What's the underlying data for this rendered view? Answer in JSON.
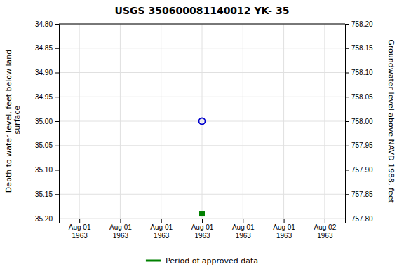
{
  "chart_data": {
    "type": "scatter",
    "title": "USGS 350600081140012 YK-  35",
    "y_label": "Depth to water level, feet below land\n surface",
    "y2_label": "Groundwater level above NAVD 1988, feet",
    "categories": [
      "Aug 01\n1963",
      "Aug 01\n1963",
      "Aug 01\n1963",
      "Aug 01\n1963",
      "Aug 01\n1963",
      "Aug 01\n1963",
      "Aug 02\n1963"
    ],
    "ylim": [
      35.2,
      34.8
    ],
    "yticks": [
      {
        "value": 34.8,
        "label": "34.80"
      },
      34.85,
      {
        "value": 34.9,
        "label": "34.90"
      },
      34.95,
      {
        "value": 35.0,
        "label": "35.00"
      },
      35.05,
      {
        "value": 35.1,
        "label": "35.10"
      },
      35.15,
      {
        "value": 35.2,
        "label": "35.20"
      }
    ],
    "y2lim": [
      757.8,
      758.2
    ],
    "y2ticks": [
      {
        "value": 758.2,
        "label": "758.20"
      },
      758.15,
      {
        "value": 758.1,
        "label": "758.10"
      },
      758.05,
      {
        "value": 758.0,
        "label": "758.00"
      },
      757.95,
      {
        "value": 757.9,
        "label": "757.90"
      },
      757.85,
      {
        "value": 757.8,
        "label": "757.80"
      }
    ],
    "series": [
      {
        "color": "#0000cc",
        "marker": "open-circle",
        "values": [
          null,
          null,
          null,
          35.0,
          null,
          null,
          null
        ]
      },
      {
        "name": "Period of approved data",
        "color": "#008000",
        "marker": "square",
        "values": [
          null,
          null,
          null,
          35.19,
          null,
          null,
          null
        ]
      }
    ],
    "grid": true,
    "legend": "bottom"
  }
}
